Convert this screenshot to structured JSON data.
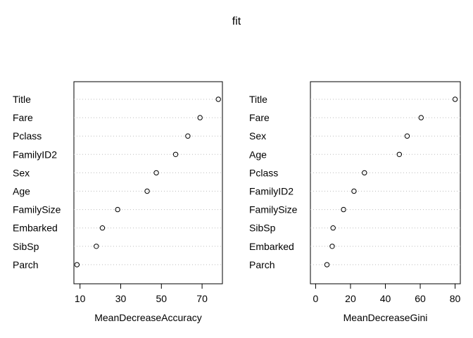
{
  "title": "fit",
  "chart_data": [
    {
      "type": "scatter",
      "subtype": "dotchart",
      "xlabel": "MeanDecreaseAccuracy",
      "ylabel": "",
      "xticks": [
        10,
        30,
        50,
        70
      ],
      "xlim": [
        7,
        80
      ],
      "grid": "dotted horizontal",
      "categories": [
        "Title",
        "Fare",
        "Pclass",
        "FamilyID2",
        "Sex",
        "Age",
        "FamilySize",
        "Embarked",
        "SibSp",
        "Parch"
      ],
      "values": [
        78,
        69,
        63,
        57,
        47.5,
        43,
        28.5,
        21,
        18,
        8.5
      ]
    },
    {
      "type": "scatter",
      "subtype": "dotchart",
      "xlabel": "MeanDecreaseGini",
      "ylabel": "",
      "xticks": [
        0,
        20,
        40,
        60,
        80
      ],
      "xlim": [
        -3,
        83
      ],
      "grid": "dotted horizontal",
      "categories": [
        "Title",
        "Fare",
        "Sex",
        "Age",
        "Pclass",
        "FamilyID2",
        "FamilySize",
        "SibSp",
        "Embarked",
        "Parch"
      ],
      "values": [
        80,
        60.5,
        52.5,
        48,
        28,
        22,
        16,
        10,
        9.5,
        6.5
      ]
    }
  ]
}
